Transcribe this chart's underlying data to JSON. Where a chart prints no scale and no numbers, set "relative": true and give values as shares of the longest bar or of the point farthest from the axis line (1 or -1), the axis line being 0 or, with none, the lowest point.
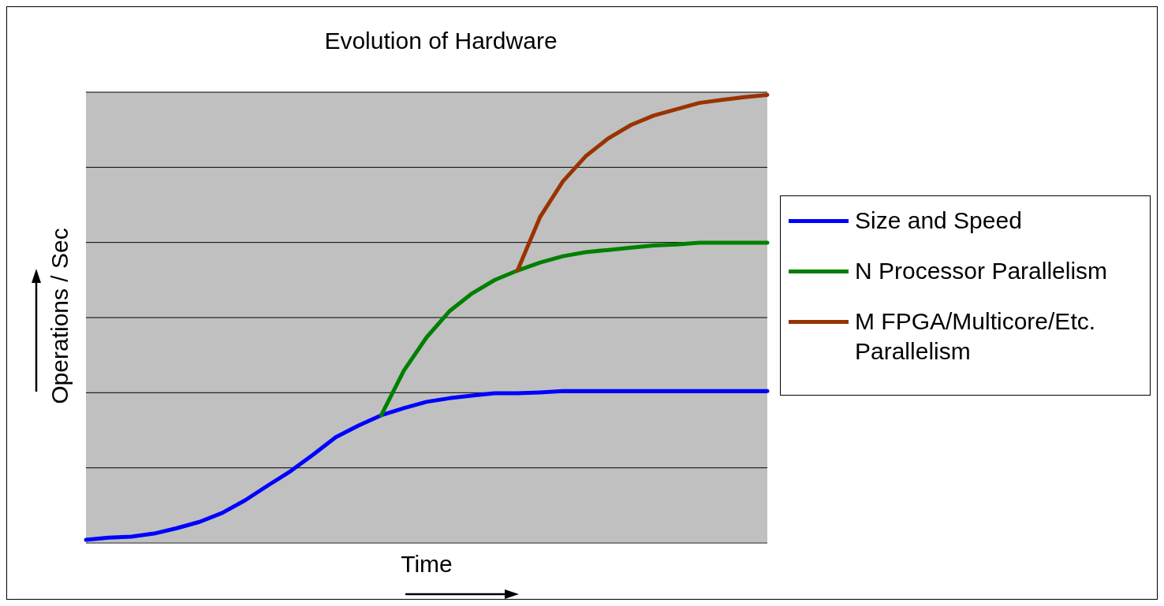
{
  "chart_data": {
    "type": "line",
    "title": "Evolution of Hardware",
    "xlabel": "Time",
    "ylabel": "Operations / Sec",
    "relative": true,
    "grid": "y",
    "legend": "right",
    "tick_labels": false,
    "categories": [
      null,
      null,
      null,
      null,
      null,
      null,
      null,
      null,
      null,
      null,
      null,
      null,
      null,
      null,
      null,
      null,
      null,
      null,
      null,
      null,
      null,
      null,
      null,
      null,
      null,
      null,
      null,
      null,
      null,
      null,
      null
    ],
    "series": [
      {
        "name": "Size and Speed",
        "color": "#0000ff",
        "values": [
          0.007,
          0.012,
          0.014,
          0.021,
          0.033,
          0.047,
          0.067,
          0.095,
          0.128,
          0.16,
          0.197,
          0.236,
          0.262,
          0.285,
          0.301,
          0.315,
          0.323,
          0.329,
          0.334,
          0.334,
          0.336,
          0.339,
          0.339,
          0.339,
          0.339,
          0.339,
          0.339,
          0.339,
          0.339,
          0.339,
          0.339
        ]
      },
      {
        "name": "N Processor Parallelism",
        "color": "#008000",
        "values": [
          null,
          null,
          null,
          null,
          null,
          null,
          null,
          null,
          null,
          null,
          null,
          null,
          null,
          0.285,
          0.385,
          0.459,
          0.517,
          0.557,
          0.587,
          0.608,
          0.626,
          0.64,
          0.649,
          0.654,
          0.659,
          0.664,
          0.666,
          0.67,
          0.67,
          0.67,
          0.67
        ]
      },
      {
        "name": "M FPGA/Multicore/Etc. Parallelism",
        "color": "#993300",
        "values": [
          null,
          null,
          null,
          null,
          null,
          null,
          null,
          null,
          null,
          null,
          null,
          null,
          null,
          null,
          null,
          null,
          null,
          null,
          null,
          0.608,
          0.728,
          0.807,
          0.863,
          0.903,
          0.933,
          0.954,
          0.968,
          0.982,
          0.989,
          0.995,
          1
        ]
      }
    ]
  }
}
